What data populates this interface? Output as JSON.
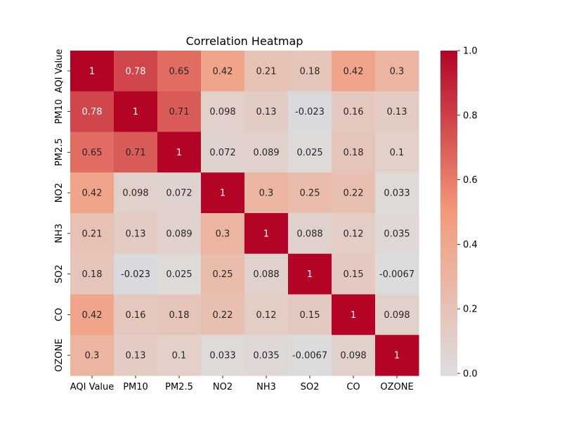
{
  "chart_data": {
    "type": "heatmap",
    "title": "Correlation Heatmap",
    "xlabel": "",
    "ylabel": "",
    "rows": [
      "AQI Value",
      "PM10",
      "PM2.5",
      "NO2",
      "NH3",
      "SO2",
      "CO",
      "OZONE"
    ],
    "cols": [
      "AQI Value",
      "PM10",
      "PM2.5",
      "NO2",
      "NH3",
      "SO2",
      "CO",
      "OZONE"
    ],
    "values": [
      [
        1,
        0.78,
        0.65,
        0.42,
        0.21,
        0.18,
        0.42,
        0.3
      ],
      [
        0.78,
        1,
        0.71,
        0.098,
        0.13,
        -0.023,
        0.16,
        0.13
      ],
      [
        0.65,
        0.71,
        1,
        0.072,
        0.089,
        0.025,
        0.18,
        0.1
      ],
      [
        0.42,
        0.098,
        0.072,
        1,
        0.3,
        0.25,
        0.22,
        0.033
      ],
      [
        0.21,
        0.13,
        0.089,
        0.3,
        1,
        0.088,
        0.12,
        0.035
      ],
      [
        0.18,
        -0.023,
        0.025,
        0.25,
        0.088,
        1,
        0.15,
        -0.0067
      ],
      [
        0.42,
        0.16,
        0.18,
        0.22,
        0.12,
        0.15,
        1,
        0.098
      ],
      [
        0.3,
        0.13,
        0.1,
        0.033,
        0.035,
        -0.0067,
        0.098,
        1
      ]
    ],
    "value_labels": [
      [
        "1",
        "0.78",
        "0.65",
        "0.42",
        "0.21",
        "0.18",
        "0.42",
        "0.3"
      ],
      [
        "0.78",
        "1",
        "0.71",
        "0.098",
        "0.13",
        "-0.023",
        "0.16",
        "0.13"
      ],
      [
        "0.65",
        "0.71",
        "1",
        "0.072",
        "0.089",
        "0.025",
        "0.18",
        "0.1"
      ],
      [
        "0.42",
        "0.098",
        "0.072",
        "1",
        "0.3",
        "0.25",
        "0.22",
        "0.033"
      ],
      [
        "0.21",
        "0.13",
        "0.089",
        "0.3",
        "1",
        "0.088",
        "0.12",
        "0.035"
      ],
      [
        "0.18",
        "-0.023",
        "0.025",
        "0.25",
        "0.088",
        "1",
        "0.15",
        "-0.0067"
      ],
      [
        "0.42",
        "0.16",
        "0.18",
        "0.22",
        "0.12",
        "0.15",
        "1",
        "0.098"
      ],
      [
        "0.3",
        "0.13",
        "0.1",
        "0.033",
        "0.035",
        "-0.0067",
        "0.098",
        "1"
      ]
    ],
    "colorbar": {
      "range": [
        -0.0067,
        1.0
      ],
      "ticks": [
        0.0,
        0.2,
        0.4,
        0.6,
        0.8,
        1.0
      ],
      "tick_labels": [
        "0.0",
        "0.2",
        "0.4",
        "0.6",
        "0.8",
        "1.0"
      ],
      "colormap": "coolwarm",
      "center": 0
    },
    "grid": false,
    "annotations": true
  }
}
